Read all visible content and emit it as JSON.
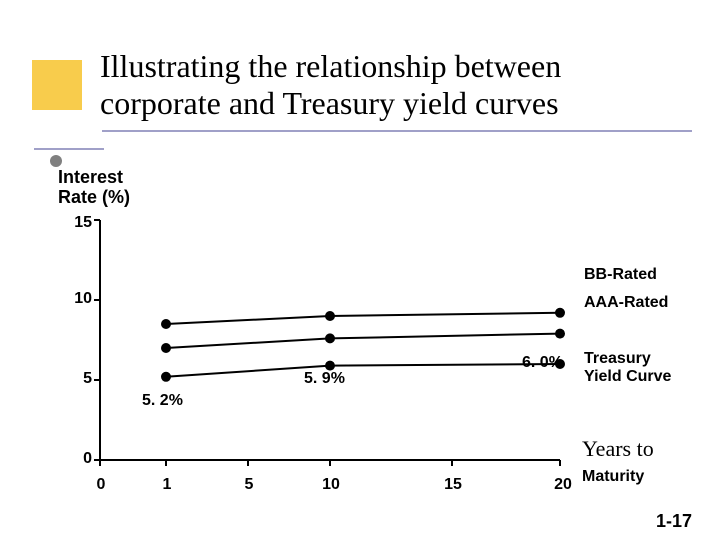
{
  "title_line1": "Illustrating the relationship between",
  "title_line2": "corporate and Treasury yield curves",
  "decor": {
    "yellow_box_color": "#f8cc4c",
    "underline_color": "#a0a0c8",
    "bullet_color": "#808080"
  },
  "chart": {
    "type": "line",
    "y_axis_label": "Interest\nRate (%)",
    "ylim": [
      0,
      15
    ],
    "yticks": [
      0,
      5,
      10,
      15
    ],
    "x_axis_label_top": "Years to",
    "x_axis_label_bottom": "Maturity",
    "xticks": [
      0,
      1,
      5,
      10,
      15,
      20
    ],
    "tick_font_size": 16,
    "label_font_size": 18,
    "axis_color": "#000000",
    "tick_color": "#000000",
    "background_color": "#ffffff",
    "line_width": 2,
    "marker_radius": 5,
    "series": [
      {
        "name": "BB-Rated",
        "label": "BB-Rated",
        "color": "#000000",
        "points": [
          {
            "x": 1,
            "y": 8.5
          },
          {
            "x": 10,
            "y": 9.0
          },
          {
            "x": 20,
            "y": 9.2
          }
        ]
      },
      {
        "name": "AAA-Rated",
        "label": "AAA-Rated",
        "color": "#000000",
        "points": [
          {
            "x": 1,
            "y": 7.0
          },
          {
            "x": 10,
            "y": 7.6
          },
          {
            "x": 20,
            "y": 7.9
          }
        ]
      },
      {
        "name": "Treasury Yield Curve",
        "label": "Treasury\nYield Curve",
        "color": "#000000",
        "points": [
          {
            "x": 1,
            "y": 5.2,
            "label": "5. 2%"
          },
          {
            "x": 10,
            "y": 5.9,
            "label": "5. 9%"
          },
          {
            "x": 20,
            "y": 6.0,
            "label": "6. 0%"
          }
        ]
      }
    ]
  },
  "slide_number": "1-17"
}
